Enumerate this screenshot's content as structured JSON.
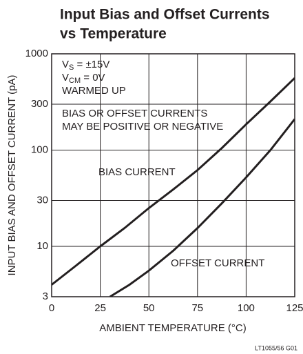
{
  "chart_data": {
    "type": "line",
    "title": [
      "Input Bias and Offset Currents",
      "vs Temperature"
    ],
    "xlabel": "AMBIENT TEMPERATURE (°C)",
    "ylabel": "INPUT BIAS AND OFFSET CURRENT (pA)",
    "conditions": [
      [
        "V",
        "S",
        " = ±15V"
      ],
      [
        "V",
        "CM",
        " = 0V"
      ],
      [
        "WARMED UP"
      ]
    ],
    "notes": [
      "BIAS OR OFFSET CURRENTS",
      "MAY BE POSITIVE OR NEGATIVE"
    ],
    "footnote": "LT1055/56 G01",
    "xlim": [
      0,
      125
    ],
    "xticks": [
      0,
      25,
      50,
      75,
      100,
      125
    ],
    "ylim": [
      3,
      1000
    ],
    "yticks": [
      3,
      10,
      30,
      100,
      300,
      1000
    ],
    "log_y": true,
    "grid": true,
    "series": [
      {
        "name": "BIAS CURRENT",
        "color": "#231f20",
        "x": [
          0,
          12.5,
          25,
          37.5,
          50,
          62.5,
          75,
          87.5,
          100,
          112.5,
          125
        ],
        "values": [
          4,
          6.3,
          10,
          15.5,
          25,
          39,
          62,
          105,
          185,
          320,
          560
        ]
      },
      {
        "name": "OFFSET CURRENT",
        "color": "#231f20",
        "x": [
          30,
          40,
          50,
          62.5,
          75,
          87.5,
          100,
          112.5,
          125
        ],
        "values": [
          3,
          4,
          5.6,
          9,
          15.5,
          28,
          52,
          100,
          210
        ]
      }
    ]
  }
}
